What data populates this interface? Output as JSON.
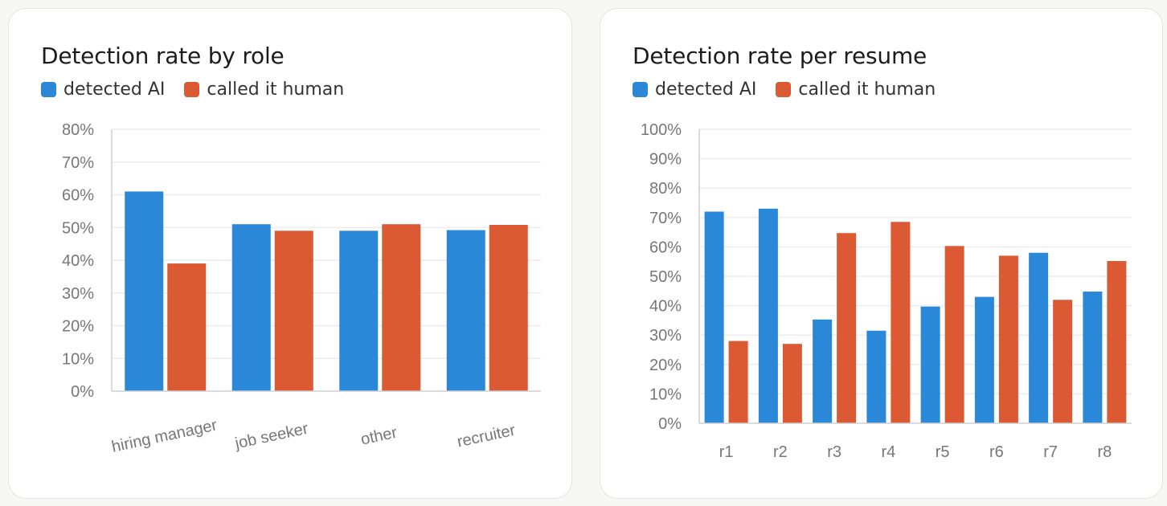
{
  "colors": {
    "detected": "#2b88d8",
    "human": "#db5a33"
  },
  "chart_data": [
    {
      "type": "bar",
      "title": "Detection rate by role",
      "series": [
        {
          "name": "detected AI",
          "values": [
            61,
            51,
            49,
            49.2
          ]
        },
        {
          "name": "called it human",
          "values": [
            39,
            49,
            51,
            50.8
          ]
        }
      ],
      "categories": [
        "hiring manager",
        "job seeker",
        "other",
        "recruiter"
      ],
      "yticks": [
        "0%",
        "10%",
        "20%",
        "30%",
        "40%",
        "50%",
        "60%",
        "70%",
        "80%"
      ],
      "ylim": [
        0,
        80
      ],
      "grid": true,
      "legend": "top-left"
    },
    {
      "type": "bar",
      "title": "Detection rate per resume",
      "series": [
        {
          "name": "detected AI",
          "values": [
            72,
            73,
            35.3,
            31.5,
            39.7,
            43,
            58,
            44.8
          ]
        },
        {
          "name": "called it human",
          "values": [
            28,
            27,
            64.7,
            68.5,
            60.3,
            57,
            42,
            55.2
          ]
        }
      ],
      "categories": [
        "r1",
        "r2",
        "r3",
        "r4",
        "r5",
        "r6",
        "r7",
        "r8"
      ],
      "yticks": [
        "0%",
        "10%",
        "20%",
        "30%",
        "40%",
        "50%",
        "60%",
        "70%",
        "80%",
        "90%",
        "100%"
      ],
      "ylim": [
        0,
        100
      ],
      "grid": true,
      "legend": "top-left"
    }
  ]
}
